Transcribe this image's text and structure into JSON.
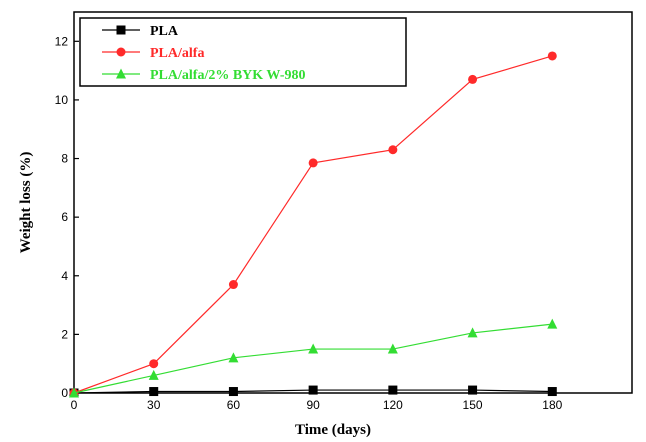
{
  "chart_data": {
    "type": "line",
    "x": [
      0,
      30,
      60,
      90,
      120,
      150,
      180
    ],
    "xlim": [
      0,
      210
    ],
    "ylim": [
      0,
      13
    ],
    "xticks": [
      0,
      30,
      60,
      90,
      120,
      150,
      180
    ],
    "yticks": [
      0,
      2,
      4,
      6,
      8,
      10,
      12
    ],
    "xlabel": "Time (days)",
    "ylabel": "Weight loss (%)",
    "legend_position": "top-left",
    "grid": false,
    "series": [
      {
        "name": "PLA",
        "color": "#000000",
        "marker": "square",
        "values": [
          0,
          0.05,
          0.05,
          0.1,
          0.1,
          0.1,
          0.05
        ]
      },
      {
        "name": "PLA/alfa",
        "color": "#ff2a2a",
        "marker": "circle",
        "values": [
          0,
          1.0,
          3.7,
          7.85,
          8.3,
          10.7,
          11.5
        ]
      },
      {
        "name": "PLA/alfa/2% BYK W-980",
        "color": "#33dd33",
        "marker": "triangle",
        "values": [
          0,
          0.6,
          1.2,
          1.5,
          1.5,
          2.05,
          2.35
        ]
      }
    ]
  }
}
